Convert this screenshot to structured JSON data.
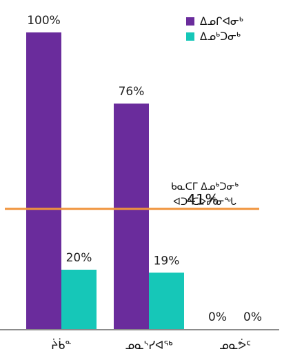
{
  "chart_data": {
    "type": "bar",
    "categories": [
      "ᔩᑳᓐ",
      "ᓄᓇᔅᓯᐊᖅ",
      "ᓄᓇᕘᑦ"
    ],
    "series": [
      {
        "name": "ᐃᓄᒋᐊᓂᒃ",
        "color": "#6a2c9c",
        "values": [
          100,
          76,
          0
        ],
        "labels": [
          "100%",
          "76%",
          "0%"
        ]
      },
      {
        "name": "ᐃᓄᒃᑐᓂᒃ",
        "color": "#16c7b8",
        "values": [
          20,
          19,
          0
        ],
        "labels": [
          "20%",
          "19%",
          "0%"
        ]
      }
    ],
    "ylim": [
      0,
      100
    ],
    "reference_line": {
      "value": 41,
      "value_label": "41%",
      "label_lines": [
        "ᑲᓇᑕᒥ ᐃᓄᒃᑐᓂᒃ",
        "ᐊᑐᕐᑕᐅᓯᕐᓂᖓ"
      ],
      "color": "#f0943c"
    },
    "legend_position": "top-right"
  }
}
